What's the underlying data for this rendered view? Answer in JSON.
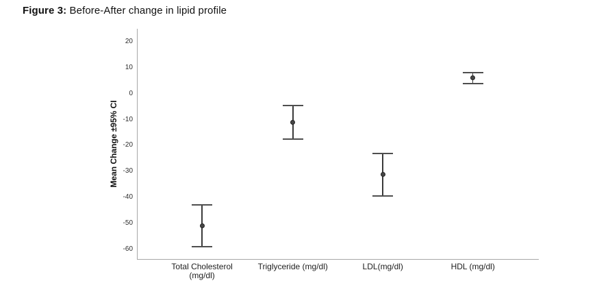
{
  "figure": {
    "title_prefix": "Figure 3:",
    "title_rest": " Before-After change in lipid profile"
  },
  "chart_data": {
    "type": "scatter",
    "subtype": "mean-with-95ci-error-bars",
    "title": "Figure 3: Before-After change in lipid profile",
    "xlabel": "",
    "ylabel": "Mean Change ±95% CI",
    "categories": [
      "Total Cholesterol (mg/dl)",
      "Triglyceride (mg/dl)",
      "LDL(mg/dl)",
      "HDL (mg/dl)"
    ],
    "category_label_lines": [
      [
        "Total Cholesterol",
        "(mg/dl)"
      ],
      [
        "Triglyceride (mg/dl)"
      ],
      [
        "LDL(mg/dl)"
      ],
      [
        "HDL (mg/dl)"
      ]
    ],
    "series": [
      {
        "name": "Mean Change",
        "means": [
          -51,
          -11,
          -31,
          6
        ],
        "ci_upper": [
          -43,
          -4.5,
          -23,
          8
        ],
        "ci_lower": [
          -59,
          -17.5,
          -39.5,
          4
        ]
      }
    ],
    "ylim": [
      -64,
      25
    ],
    "yticks": [
      20,
      10,
      0,
      -10,
      -20,
      -30,
      -40,
      -50,
      -60
    ],
    "grid": false,
    "legend": false,
    "colors": {
      "marker": "#474747",
      "error_line": "#3a3a3a",
      "cap": "#4e4e4e",
      "axis_line": "#a6a6a6",
      "text": "#1d1d1d"
    }
  }
}
